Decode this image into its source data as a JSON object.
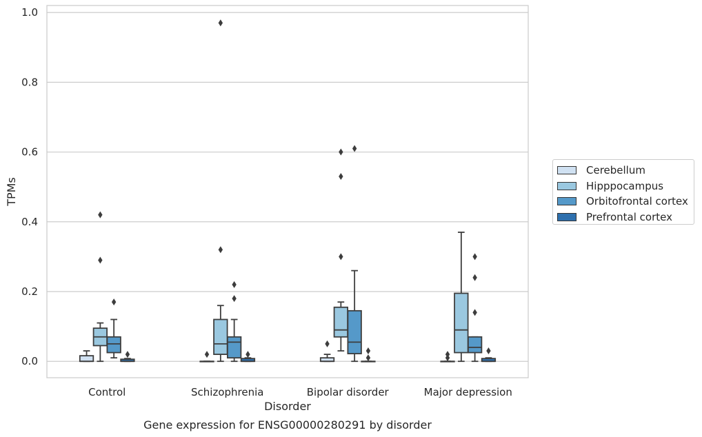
{
  "chart_data": {
    "type": "box",
    "title": "Gene expression for ENSG00000280291 by disorder",
    "xlabel": "Disorder",
    "ylabel": "TPMs",
    "ylim": [
      -0.047,
      1.02
    ],
    "yticks": [
      "0.0",
      "0.2",
      "0.4",
      "0.6",
      "0.8",
      "1.0"
    ],
    "grid": "horizontal",
    "legend_position": "right",
    "categories": [
      "Control",
      "Schizophrenia",
      "Bipolar disorder",
      "Major depression"
    ],
    "series": [
      {
        "name": "Cerebellum",
        "color": "#d0e1f2",
        "boxes": [
          {
            "whislo": 0.0,
            "q1": 0.0,
            "med": 0.0,
            "q3": 0.016,
            "whishi": 0.03,
            "fliers": []
          },
          {
            "whislo": 0.0,
            "q1": 0.0,
            "med": 0.0,
            "q3": 0.0,
            "whishi": 0.0,
            "fliers": [
              0.02
            ]
          },
          {
            "whislo": 0.0,
            "q1": 0.0,
            "med": 0.0,
            "q3": 0.01,
            "whishi": 0.02,
            "fliers": [
              0.05
            ]
          },
          {
            "whislo": 0.0,
            "q1": 0.0,
            "med": 0.0,
            "q3": 0.0,
            "whishi": 0.0,
            "fliers": [
              0.01,
              0.02
            ]
          }
        ]
      },
      {
        "name": "Hipppocampus",
        "color": "#9ac8e0",
        "boxes": [
          {
            "whislo": 0.0,
            "q1": 0.045,
            "med": 0.07,
            "q3": 0.095,
            "whishi": 0.11,
            "fliers": [
              0.29,
              0.42
            ]
          },
          {
            "whislo": 0.0,
            "q1": 0.02,
            "med": 0.05,
            "q3": 0.12,
            "whishi": 0.16,
            "fliers": [
              0.32,
              0.97
            ]
          },
          {
            "whislo": 0.03,
            "q1": 0.07,
            "med": 0.09,
            "q3": 0.155,
            "whishi": 0.17,
            "fliers": [
              0.3,
              0.53,
              0.6
            ]
          },
          {
            "whislo": 0.0,
            "q1": 0.025,
            "med": 0.09,
            "q3": 0.195,
            "whishi": 0.37,
            "fliers": []
          }
        ]
      },
      {
        "name": "Orbitofrontal cortex",
        "color": "#5599c9",
        "boxes": [
          {
            "whislo": 0.01,
            "q1": 0.025,
            "med": 0.05,
            "q3": 0.07,
            "whishi": 0.12,
            "fliers": [
              0.17
            ]
          },
          {
            "whislo": 0.0,
            "q1": 0.01,
            "med": 0.055,
            "q3": 0.07,
            "whishi": 0.12,
            "fliers": [
              0.18,
              0.22
            ]
          },
          {
            "whislo": 0.0,
            "q1": 0.022,
            "med": 0.055,
            "q3": 0.145,
            "whishi": 0.26,
            "fliers": [
              0.61
            ]
          },
          {
            "whislo": 0.0,
            "q1": 0.025,
            "med": 0.04,
            "q3": 0.07,
            "whishi": 0.07,
            "fliers": [
              0.14,
              0.24,
              0.3
            ]
          }
        ]
      },
      {
        "name": "Prefrontal cortex",
        "color": "#2e70ae",
        "boxes": [
          {
            "whislo": 0.0,
            "q1": 0.0,
            "med": 0.0,
            "q3": 0.006,
            "whishi": 0.008,
            "fliers": [
              0.02
            ]
          },
          {
            "whislo": 0.0,
            "q1": 0.0,
            "med": 0.0,
            "q3": 0.008,
            "whishi": 0.01,
            "fliers": [
              0.02
            ]
          },
          {
            "whislo": 0.0,
            "q1": 0.0,
            "med": 0.0,
            "q3": 0.0,
            "whishi": 0.0,
            "fliers": [
              0.01,
              0.03
            ]
          },
          {
            "whislo": 0.0,
            "q1": 0.0,
            "med": 0.0,
            "q3": 0.008,
            "whishi": 0.01,
            "fliers": [
              0.03
            ]
          }
        ]
      }
    ]
  }
}
